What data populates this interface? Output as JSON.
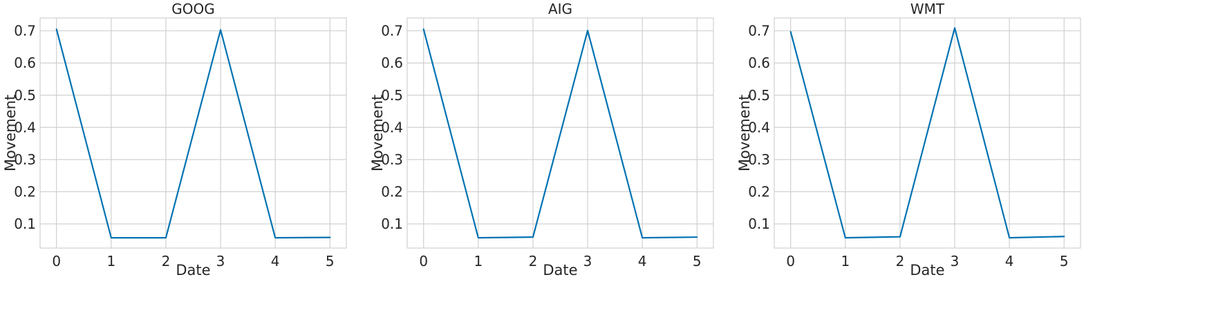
{
  "chart_data": [
    {
      "type": "line",
      "title": "GOOG",
      "xlabel": "Date",
      "ylabel": "Movement",
      "x": [
        0,
        1,
        2,
        3,
        4,
        5
      ],
      "series": [
        {
          "values": [
            0.705,
            0.057,
            0.057,
            0.703,
            0.057,
            0.058
          ]
        }
      ],
      "xticks": [
        "0",
        "1",
        "2",
        "3",
        "4",
        "5"
      ],
      "yticks": [
        "0.1",
        "0.2",
        "0.3",
        "0.4",
        "0.5",
        "0.6",
        "0.7"
      ],
      "xlim": [
        -0.3,
        5.3
      ],
      "ylim": [
        0.025,
        0.74
      ],
      "grid": true,
      "line_color": "#0072b2"
    },
    {
      "type": "line",
      "title": "AIG",
      "xlabel": "Date",
      "ylabel": "Movement",
      "x": [
        0,
        1,
        2,
        3,
        4,
        5
      ],
      "series": [
        {
          "values": [
            0.705,
            0.057,
            0.059,
            0.701,
            0.057,
            0.059
          ]
        }
      ],
      "xticks": [
        "0",
        "1",
        "2",
        "3",
        "4",
        "5"
      ],
      "yticks": [
        "0.1",
        "0.2",
        "0.3",
        "0.4",
        "0.5",
        "0.6",
        "0.7"
      ],
      "xlim": [
        -0.3,
        5.3
      ],
      "ylim": [
        0.025,
        0.74
      ],
      "grid": true,
      "line_color": "#0072b2"
    },
    {
      "type": "line",
      "title": "WMT",
      "xlabel": "Date",
      "ylabel": "Movement",
      "x": [
        0,
        1,
        2,
        3,
        4,
        5
      ],
      "series": [
        {
          "values": [
            0.697,
            0.057,
            0.06,
            0.709,
            0.057,
            0.061
          ]
        }
      ],
      "xticks": [
        "0",
        "1",
        "2",
        "3",
        "4",
        "5"
      ],
      "yticks": [
        "0.1",
        "0.2",
        "0.3",
        "0.4",
        "0.5",
        "0.6",
        "0.7"
      ],
      "xlim": [
        -0.3,
        5.3
      ],
      "ylim": [
        0.025,
        0.74
      ],
      "grid": true,
      "line_color": "#0072b2"
    }
  ]
}
